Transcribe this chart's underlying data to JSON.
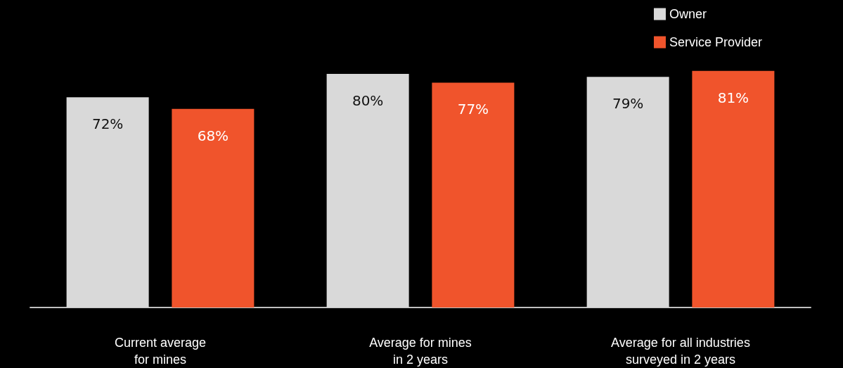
{
  "chart_data": {
    "type": "bar",
    "categories": [
      "Current average\nfor mines",
      "Average for mines\nin 2 years",
      "Average for all industries\nsurveyed in 2 years"
    ],
    "series": [
      {
        "name": "Owner",
        "color": "#d9d9d9",
        "values": [
          72,
          80,
          79
        ],
        "value_labels": [
          "72%",
          "80%",
          "79%"
        ]
      },
      {
        "name": "Service Provider",
        "color": "#f0542c",
        "values": [
          68,
          77,
          81
        ],
        "value_labels": [
          "68%",
          "77%",
          "81%"
        ]
      }
    ],
    "tick_labels": "x",
    "legend": "top right",
    "grid": false
  }
}
